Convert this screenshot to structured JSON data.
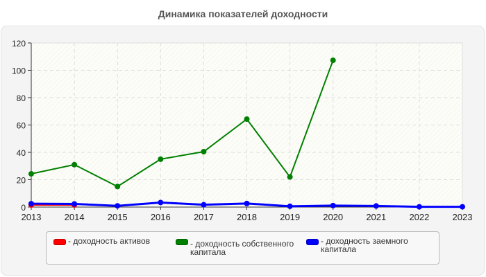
{
  "title": "Динамика показателей доходности",
  "chart_data": {
    "type": "line",
    "title": "Динамика показателей доходности",
    "xlabel": "",
    "ylabel": "",
    "x": [
      2013,
      2014,
      2015,
      2016,
      2017,
      2018,
      2019,
      2020,
      2021,
      2022,
      2023
    ],
    "ylim": [
      0,
      120
    ],
    "yticks": [
      0,
      20,
      40,
      60,
      80,
      100,
      120
    ],
    "grid": true,
    "legend_position": "bottom",
    "series": [
      {
        "name": "- доходность активов",
        "color": "#ff0000",
        "values": [
          1.5,
          1.5,
          null,
          null,
          null,
          null,
          null,
          null,
          null,
          null,
          null
        ]
      },
      {
        "name": "- доходность собственного капитала",
        "color": "#008000",
        "values": [
          24.3,
          31,
          15,
          35,
          40.5,
          64.3,
          22,
          107.3,
          null,
          null,
          null
        ]
      },
      {
        "name": "- доходность заемного капитала",
        "color": "#0000ff",
        "values": [
          2.5,
          2.3,
          0.9,
          3.3,
          1.7,
          2.6,
          0.6,
          1.1,
          0.8,
          0.2,
          0.2
        ]
      }
    ]
  },
  "legend": [
    {
      "label": "- доходность активов",
      "color": "#ff0000"
    },
    {
      "label": "- доходность собственного капитала",
      "color": "#008000"
    },
    {
      "label": "- доходность заемного капитала",
      "color": "#0000ff"
    }
  ]
}
